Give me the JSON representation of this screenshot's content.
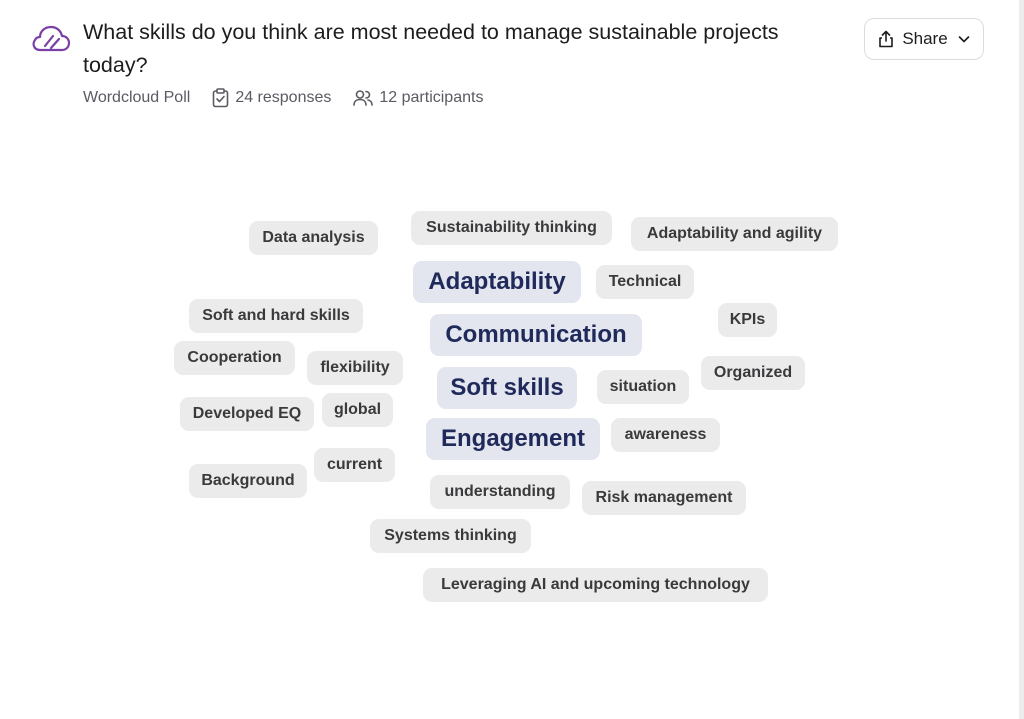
{
  "poll": {
    "title": "What skills do you think are most needed to manage sustainable projects today?",
    "type": "Wordcloud Poll",
    "responses": "24 responses",
    "participants": "12 participants",
    "share_label": "Share",
    "icons": [
      "cloud-poll-icon",
      "clipboard-check-icon",
      "users-icon",
      "share-icon",
      "chevron-down-icon"
    ],
    "accent_color": "#7b3fa8"
  },
  "wordcloud": {
    "words": [
      "Data analysis",
      "Sustainability thinking",
      "Adaptability and agility",
      "Adaptability",
      "Technical",
      "Soft and hard skills",
      "KPIs",
      "Communication",
      "Cooperation",
      "flexibility",
      "Organized",
      "Soft skills",
      "situation",
      "Developed EQ",
      "global",
      "Engagement",
      "awareness",
      "current",
      "Background",
      "understanding",
      "Risk management",
      "Systems thinking",
      "Leveraging AI and upcoming technology"
    ],
    "emphasized_words": [
      "Adaptability",
      "Communication",
      "Soft skills",
      "Engagement"
    ],
    "emphasis_color": "#1f2a5a"
  }
}
